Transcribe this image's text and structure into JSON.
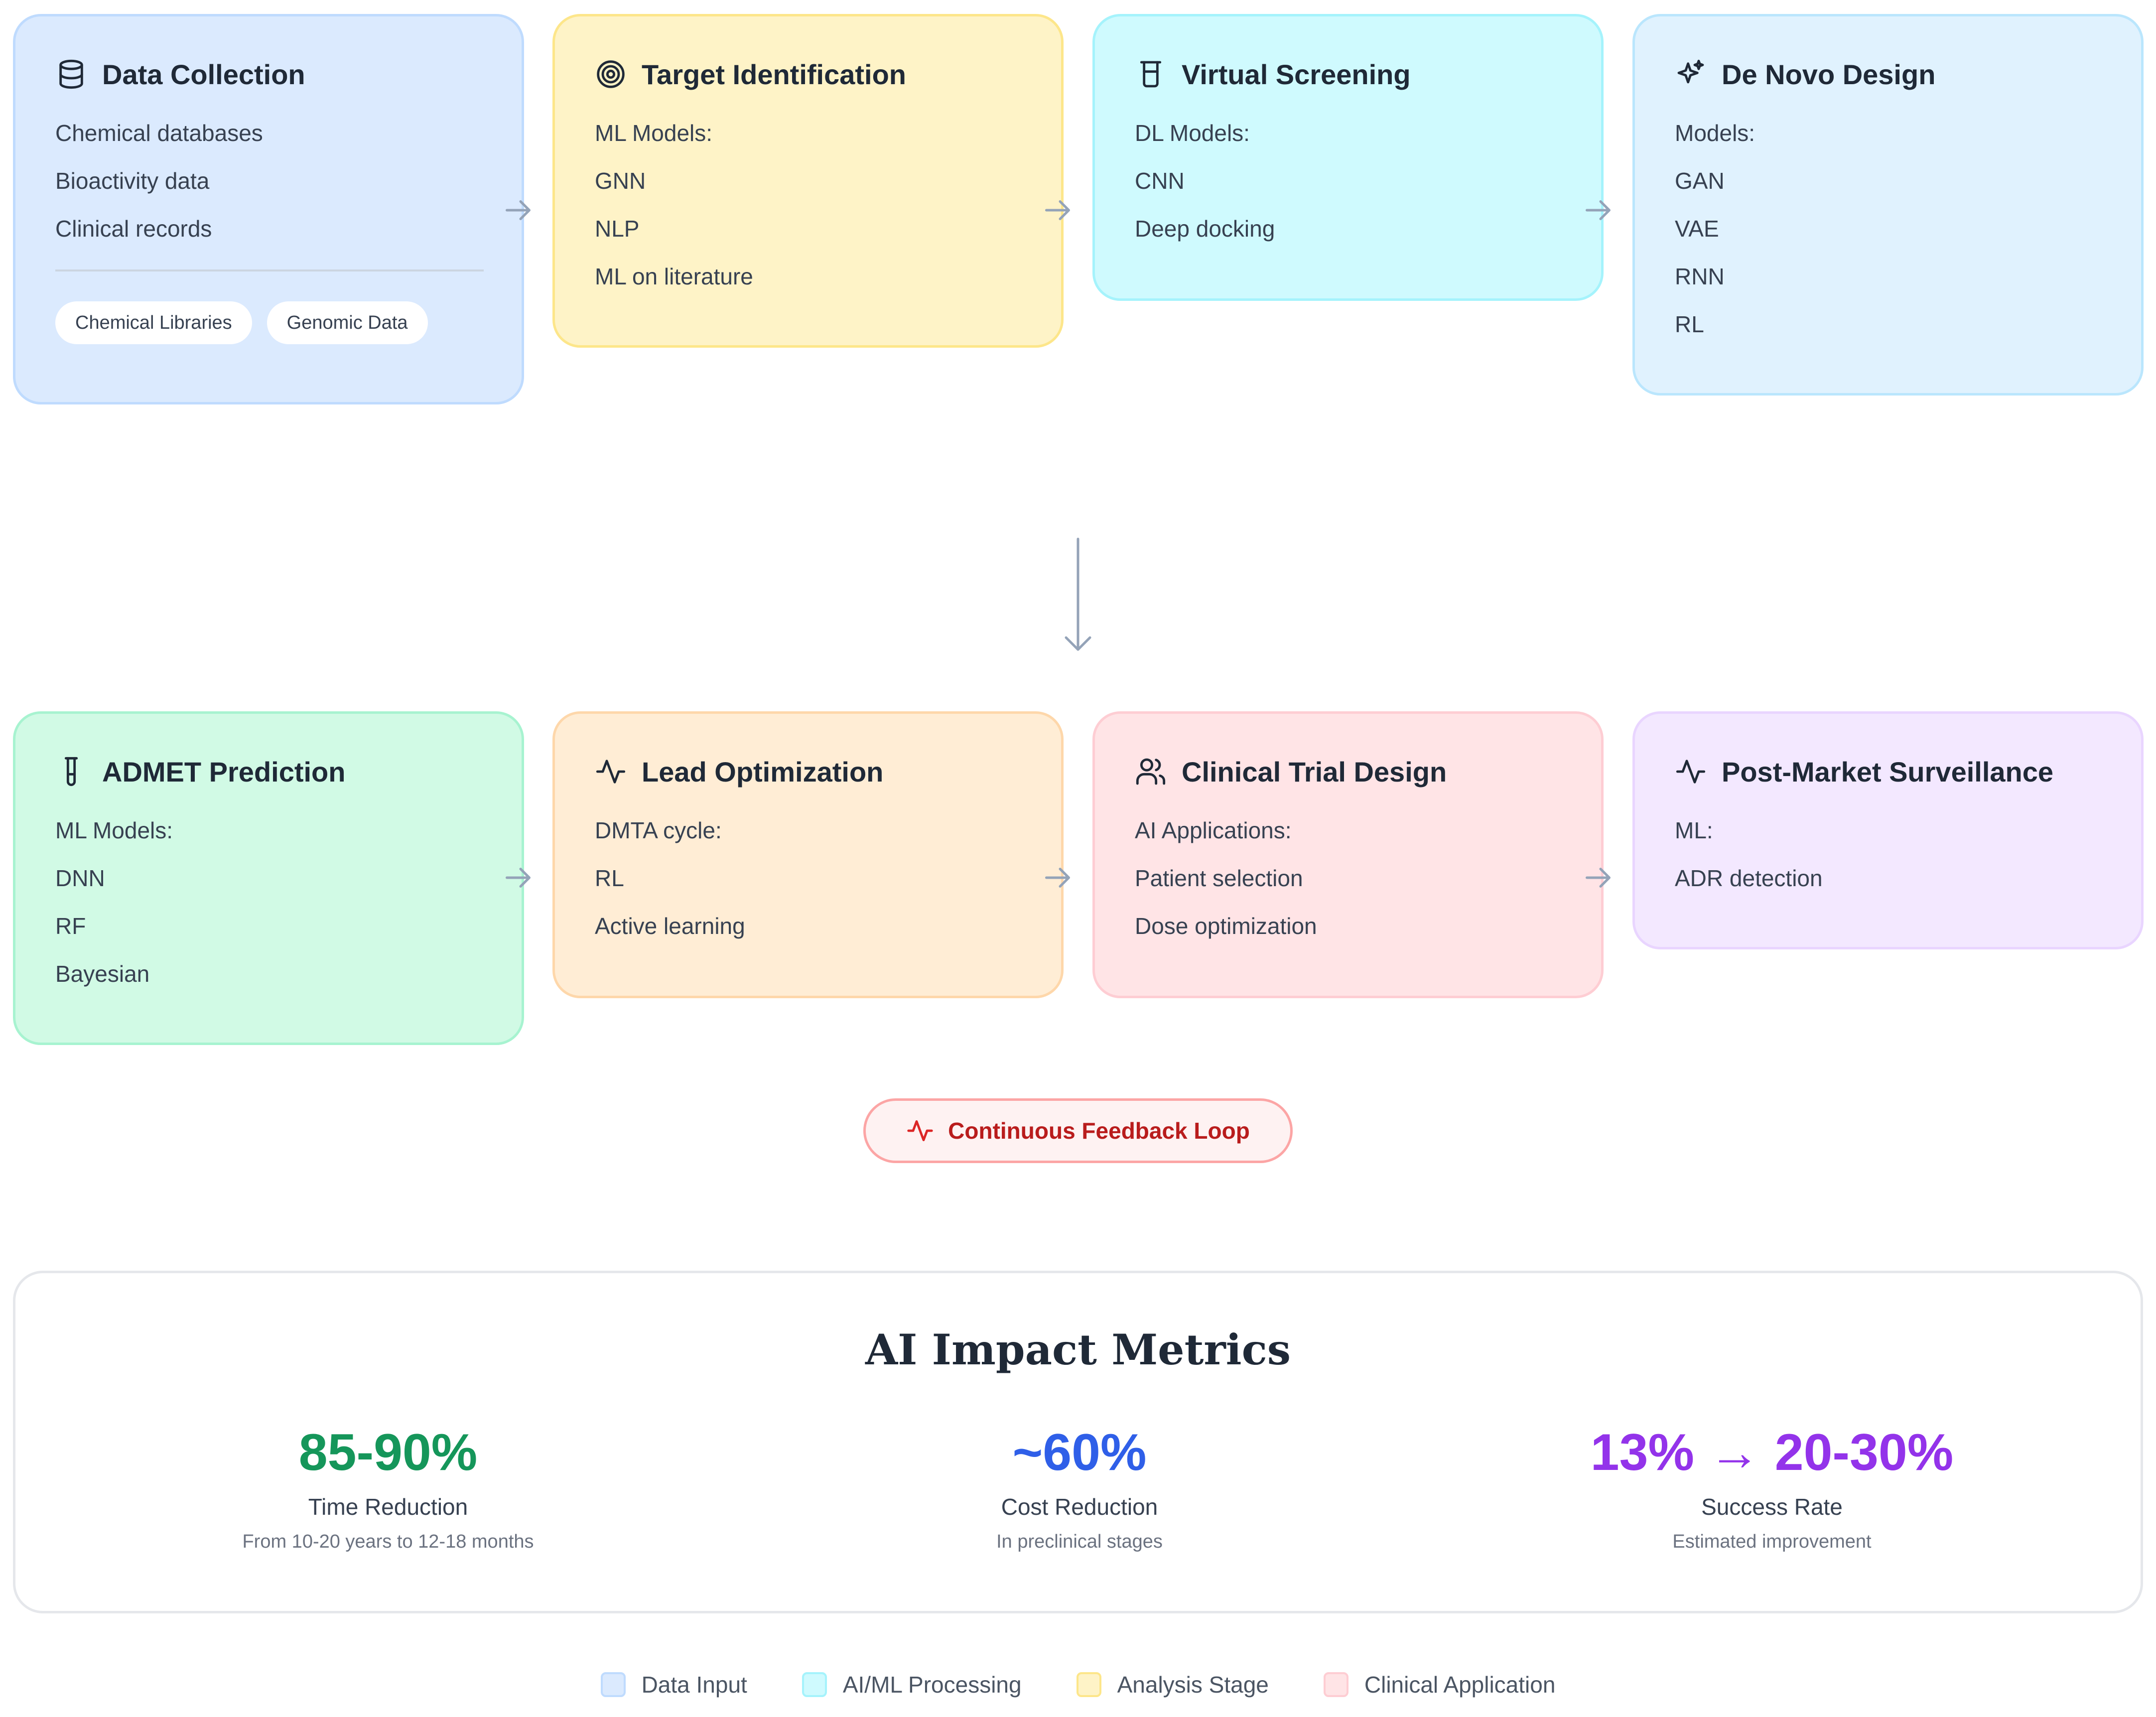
{
  "pipeline": {
    "row1": [
      {
        "title": "Data Collection",
        "icon": "database-icon",
        "items": [
          "Chemical databases",
          "Bioactivity data",
          "Clinical records"
        ],
        "tags": [
          "Chemical Libraries",
          "Genomic Data"
        ],
        "bg": "#dbeafe",
        "border": "#bfdbfe"
      },
      {
        "title": "Target Identification",
        "icon": "target-icon",
        "items": [
          "ML Models:",
          "GNN",
          "NLP",
          "ML on literature"
        ],
        "bg": "#fef3c7",
        "border": "#fde68a"
      },
      {
        "title": "Virtual Screening",
        "icon": "beaker-icon",
        "items": [
          "DL Models:",
          "CNN",
          "Deep docking"
        ],
        "bg": "#cffafe",
        "border": "#a5f3fc"
      },
      {
        "title": "De Novo Design",
        "icon": "sparkles-icon",
        "items": [
          "Models:",
          "GAN",
          "VAE",
          "RNN",
          "RL"
        ],
        "bg": "#e0f2fe",
        "border": "#bae6fd"
      }
    ],
    "row2": [
      {
        "title": "ADMET Prediction",
        "icon": "test-tube-icon",
        "items": [
          "ML Models:",
          "DNN",
          "RF",
          "Bayesian"
        ],
        "bg": "#d1fae5",
        "border": "#a7f3d0"
      },
      {
        "title": "Lead Optimization",
        "icon": "activity-icon",
        "items": [
          "DMTA cycle:",
          "RL",
          "Active learning"
        ],
        "bg": "#ffedd5",
        "border": "#fed7aa"
      },
      {
        "title": "Clinical Trial Design",
        "icon": "users-icon",
        "items": [
          "AI Applications:",
          "Patient selection",
          "Dose optimization"
        ],
        "bg": "#ffe4e6",
        "border": "#fecdd3"
      },
      {
        "title": "Post-Market Surveillance",
        "icon": "activity-icon",
        "items": [
          "ML:",
          "ADR detection"
        ],
        "bg": "#f3e8ff",
        "border": "#e9d5ff"
      }
    ]
  },
  "feedback": {
    "label": "Continuous Feedback Loop",
    "icon": "activity-icon"
  },
  "metrics": {
    "title": "AI Impact Metrics",
    "items": [
      {
        "value": "85-90%",
        "label": "Time Reduction",
        "sub": "From 10-20 years to 12-18 months",
        "color": "#15965a"
      },
      {
        "value": "~60%",
        "label": "Cost Reduction",
        "sub": "In preclinical stages",
        "color": "#2f5fe8"
      },
      {
        "value": "13% → 20-30%",
        "label": "Success Rate",
        "sub": "Estimated improvement",
        "color": "#9333ea"
      }
    ]
  },
  "legend": [
    {
      "label": "Data Input",
      "color": "#dbeafe",
      "border": "#bfdbfe"
    },
    {
      "label": "AI/ML Processing",
      "color": "#cffafe",
      "border": "#a5f3fc"
    },
    {
      "label": "Analysis Stage",
      "color": "#fef3c7",
      "border": "#fde68a"
    },
    {
      "label": "Clinical Application",
      "color": "#ffe4e6",
      "border": "#fecdd3"
    }
  ],
  "arrow_color": "#94a3b8"
}
